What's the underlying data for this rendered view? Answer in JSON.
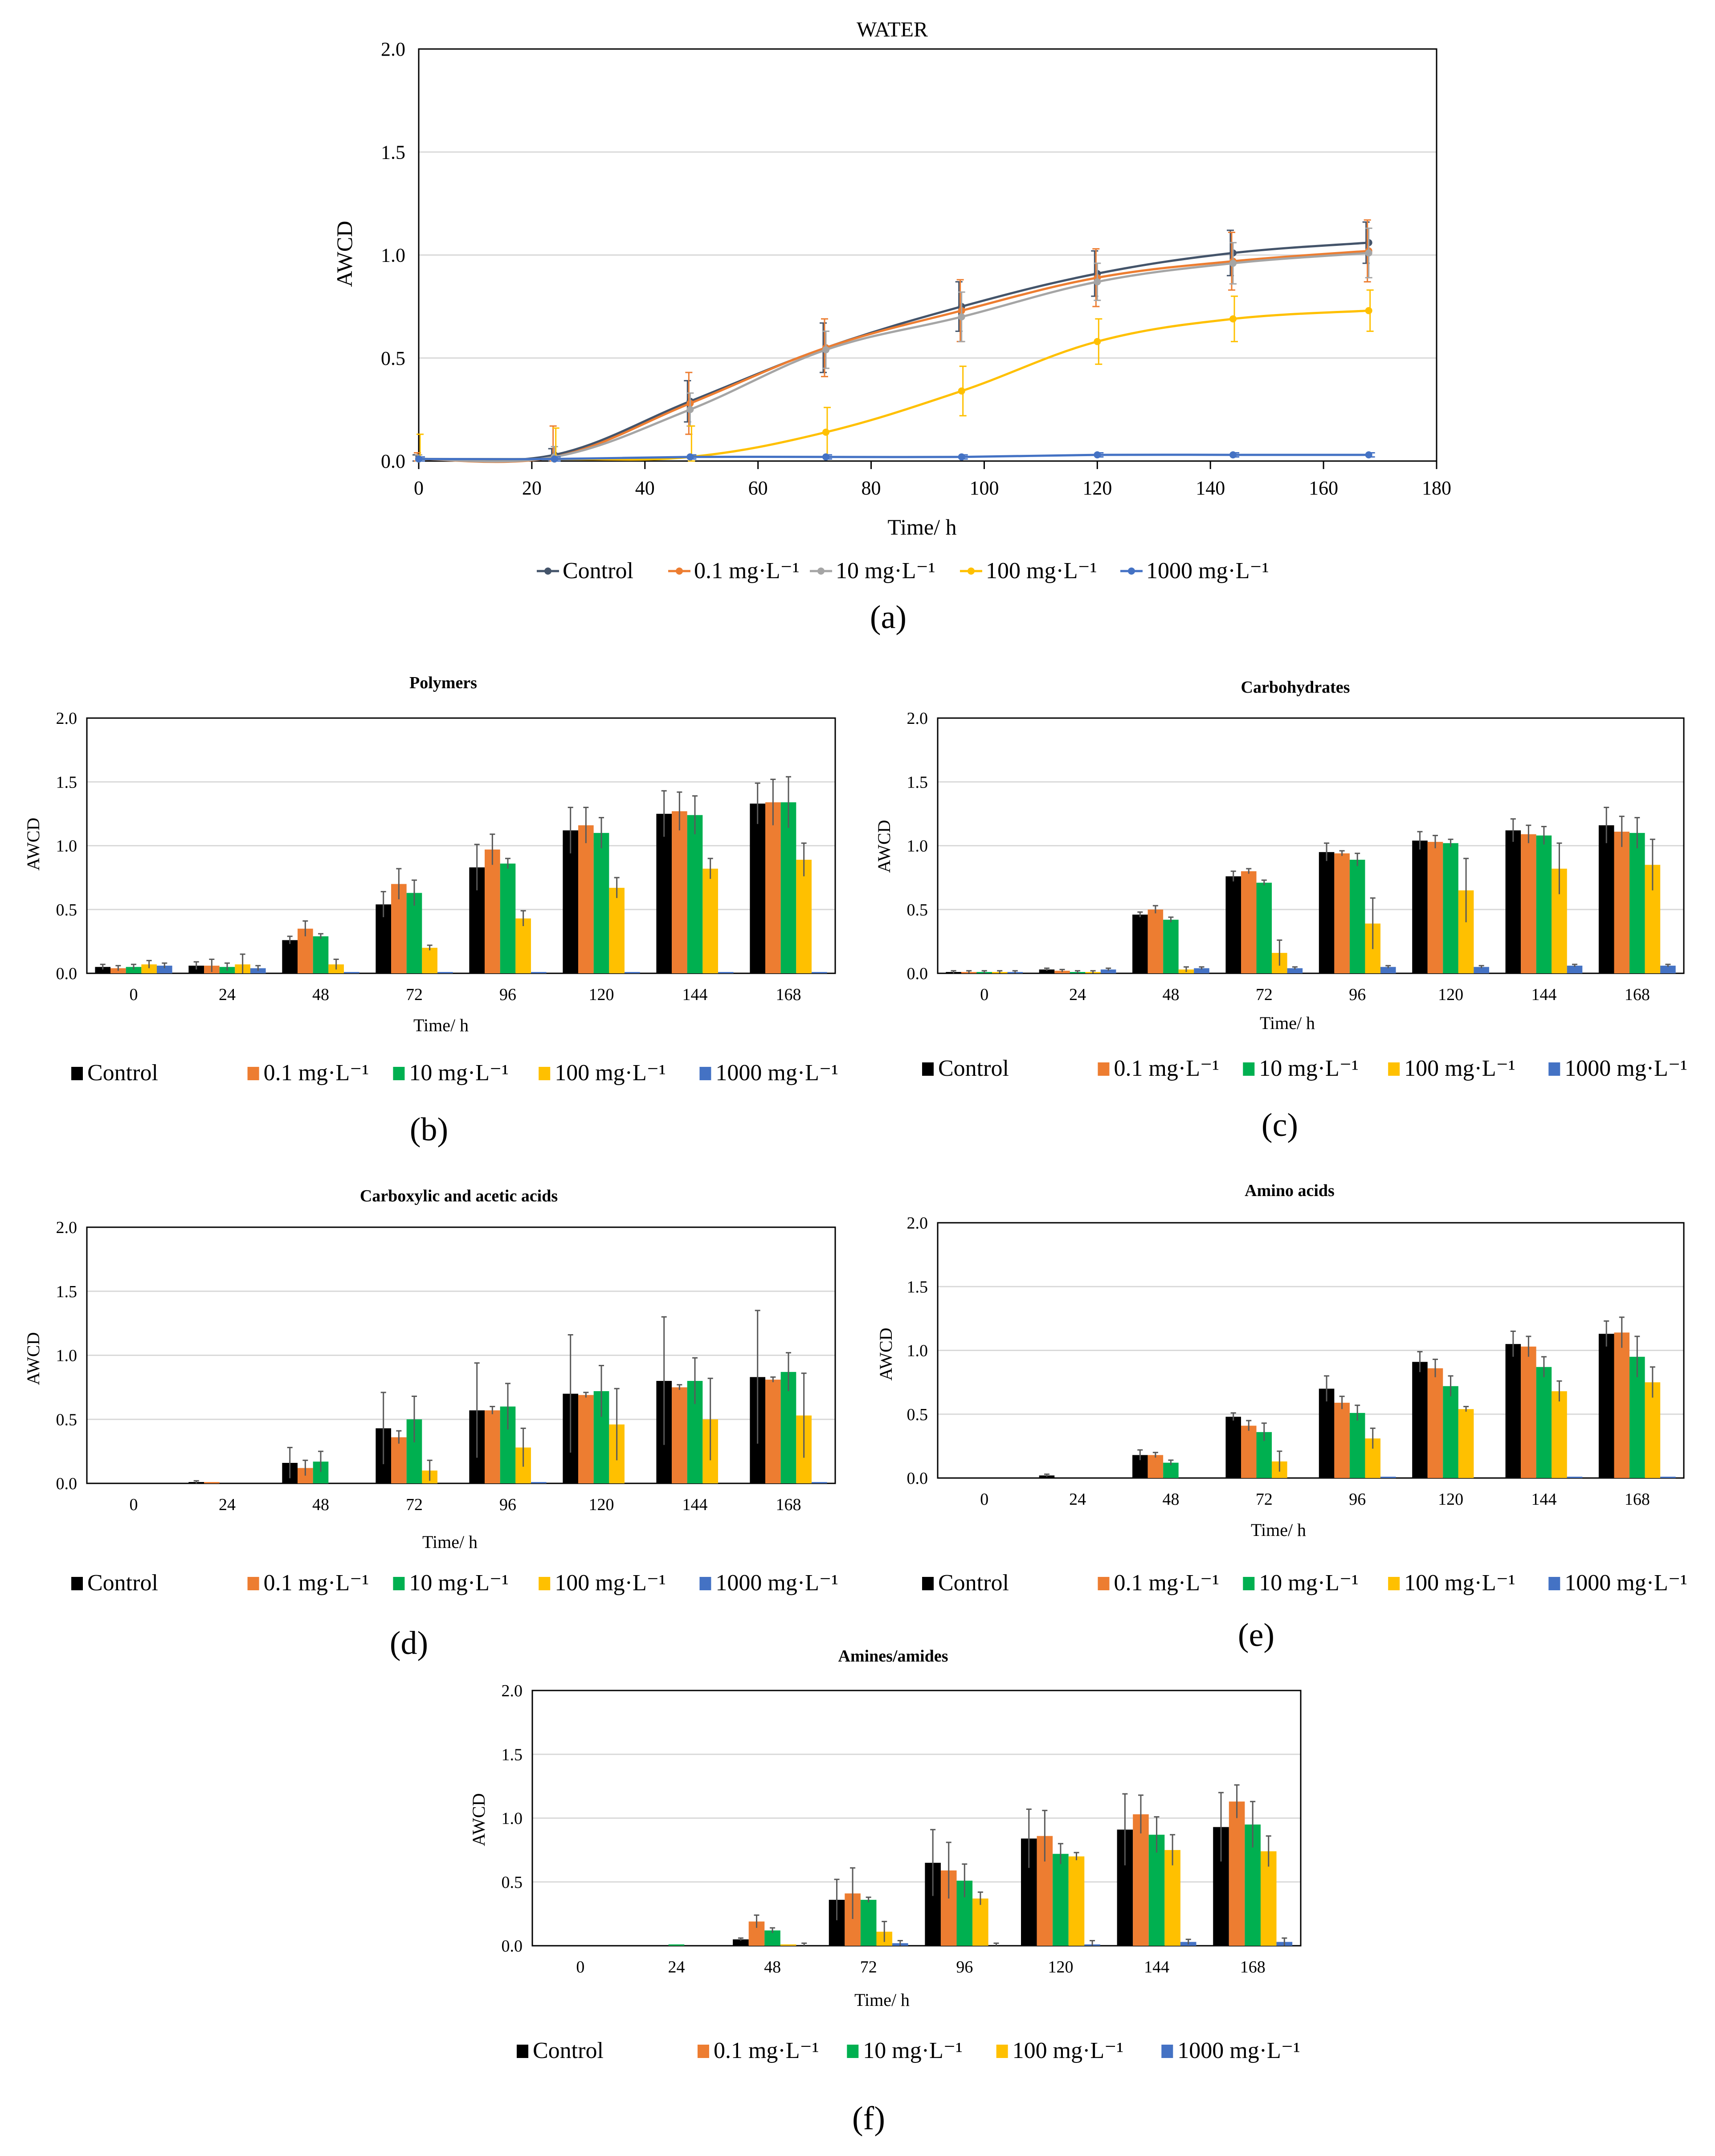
{
  "legend_labels": [
    "Control",
    "0.1 mg·L⁻¹",
    "10 mg·L⁻¹",
    "100 mg·L⁻¹",
    "1000 mg·L⁻¹"
  ],
  "colors": {
    "line": [
      "#44546a",
      "#ed7d31",
      "#a5a5a5",
      "#ffc000",
      "#4472c4"
    ],
    "bar": [
      "#000000",
      "#ed7d31",
      "#00b050",
      "#ffc000",
      "#4472c4"
    ]
  },
  "panel_labels": [
    "(a)",
    "(b)",
    "(c)",
    "(d)",
    "(e)",
    "(f)"
  ],
  "chart_data": [
    {
      "type": "line",
      "title": "WATER",
      "xlabel": "Time/ h",
      "ylabel": "AWCD",
      "xlim": [
        0,
        180
      ],
      "ylim": [
        0,
        2.0
      ],
      "xticks": [
        "0",
        "20",
        "40",
        "60",
        "80",
        "100",
        "120",
        "140",
        "160",
        "180"
      ],
      "yticks": [
        "0.0",
        "0.5",
        "1.0",
        "1.5",
        "2.0"
      ],
      "grid": true,
      "legend_position": "bottom",
      "x": [
        0,
        24,
        48,
        72,
        96,
        120,
        144,
        168
      ],
      "series": [
        {
          "name": "Control",
          "values": [
            0.01,
            0.03,
            0.29,
            0.55,
            0.75,
            0.91,
            1.01,
            1.06
          ],
          "errors": [
            0.02,
            0.03,
            0.1,
            0.12,
            0.12,
            0.11,
            0.11,
            0.1
          ]
        },
        {
          "name": "0.1 mg·L⁻¹",
          "values": [
            0.01,
            0.02,
            0.28,
            0.55,
            0.73,
            0.89,
            0.97,
            1.02
          ],
          "errors": [
            0.03,
            0.15,
            0.15,
            0.14,
            0.15,
            0.14,
            0.14,
            0.15
          ]
        },
        {
          "name": "10 mg·L⁻¹",
          "values": [
            0.01,
            0.02,
            0.25,
            0.54,
            0.7,
            0.87,
            0.96,
            1.01
          ],
          "errors": [
            0.02,
            0.05,
            0.08,
            0.09,
            0.12,
            0.09,
            0.1,
            0.12
          ]
        },
        {
          "name": "100 mg·L⁻¹",
          "values": [
            0.01,
            0.01,
            0.02,
            0.14,
            0.34,
            0.58,
            0.69,
            0.73
          ],
          "errors": [
            0.12,
            0.15,
            0.15,
            0.12,
            0.12,
            0.11,
            0.11,
            0.1
          ]
        },
        {
          "name": "1000 mg·L⁻¹",
          "values": [
            0.01,
            0.01,
            0.02,
            0.02,
            0.02,
            0.03,
            0.03,
            0.03
          ],
          "errors": [
            0.01,
            0.01,
            0.01,
            0.01,
            0.01,
            0.01,
            0.01,
            0.01
          ]
        }
      ]
    },
    {
      "type": "bar",
      "title": "Polymers",
      "xlabel": "Time/ h",
      "ylabel": "AWCD",
      "ylim": [
        0,
        2.0
      ],
      "yticks": [
        "0.0",
        "0.5",
        "1.0",
        "1.5",
        "2.0"
      ],
      "categories": [
        "0",
        "24",
        "48",
        "72",
        "96",
        "120",
        "144",
        "168"
      ],
      "legend_position": "bottom",
      "series": [
        {
          "name": "Control",
          "values": [
            0.05,
            0.06,
            0.26,
            0.54,
            0.83,
            1.12,
            1.25,
            1.33
          ],
          "errors": [
            0.02,
            0.03,
            0.03,
            0.1,
            0.18,
            0.18,
            0.18,
            0.16
          ]
        },
        {
          "name": "0.1 mg·L⁻¹",
          "values": [
            0.04,
            0.06,
            0.35,
            0.7,
            0.97,
            1.16,
            1.27,
            1.34
          ],
          "errors": [
            0.02,
            0.05,
            0.06,
            0.12,
            0.12,
            0.14,
            0.15,
            0.18
          ]
        },
        {
          "name": "10 mg·L⁻¹",
          "values": [
            0.05,
            0.05,
            0.29,
            0.63,
            0.86,
            1.1,
            1.24,
            1.34
          ],
          "errors": [
            0.02,
            0.03,
            0.02,
            0.1,
            0.04,
            0.12,
            0.15,
            0.2
          ]
        },
        {
          "name": "100 mg·L⁻¹",
          "values": [
            0.07,
            0.07,
            0.07,
            0.2,
            0.43,
            0.67,
            0.82,
            0.89
          ],
          "errors": [
            0.03,
            0.08,
            0.04,
            0.02,
            0.06,
            0.08,
            0.08,
            0.13
          ]
        },
        {
          "name": "1000 mg·L⁻¹",
          "values": [
            0.06,
            0.04,
            0.01,
            0.01,
            0.01,
            0.01,
            0.01,
            0.01
          ],
          "errors": [
            0.02,
            0.02,
            0.0,
            0.0,
            0.0,
            0.0,
            0.0,
            0.0
          ]
        }
      ]
    },
    {
      "type": "bar",
      "title": "Carbohydrates",
      "xlabel": "Time/ h",
      "ylabel": "AWCD",
      "ylim": [
        0,
        2.0
      ],
      "yticks": [
        "0.0",
        "0.5",
        "1.0",
        "1.5",
        "2.0"
      ],
      "categories": [
        "0",
        "24",
        "48",
        "72",
        "96",
        "120",
        "144",
        "168"
      ],
      "legend_position": "bottom",
      "series": [
        {
          "name": "Control",
          "values": [
            0.01,
            0.03,
            0.46,
            0.76,
            0.95,
            1.04,
            1.12,
            1.16
          ],
          "errors": [
            0.01,
            0.01,
            0.02,
            0.04,
            0.07,
            0.07,
            0.09,
            0.14
          ]
        },
        {
          "name": "0.1 mg·L⁻¹",
          "values": [
            0.01,
            0.02,
            0.5,
            0.8,
            0.94,
            1.03,
            1.09,
            1.11
          ],
          "errors": [
            0.01,
            0.01,
            0.03,
            0.02,
            0.02,
            0.05,
            0.07,
            0.12
          ]
        },
        {
          "name": "10 mg·L⁻¹",
          "values": [
            0.01,
            0.01,
            0.42,
            0.71,
            0.89,
            1.02,
            1.08,
            1.1
          ],
          "errors": [
            0.01,
            0.01,
            0.02,
            0.02,
            0.05,
            0.03,
            0.07,
            0.12
          ]
        },
        {
          "name": "100 mg·L⁻¹",
          "values": [
            0.01,
            0.01,
            0.03,
            0.16,
            0.39,
            0.65,
            0.82,
            0.85
          ],
          "errors": [
            0.01,
            0.01,
            0.02,
            0.1,
            0.2,
            0.25,
            0.2,
            0.2
          ]
        },
        {
          "name": "1000 mg·L⁻¹",
          "values": [
            0.01,
            0.03,
            0.04,
            0.04,
            0.05,
            0.05,
            0.06,
            0.06
          ],
          "errors": [
            0.01,
            0.01,
            0.01,
            0.01,
            0.01,
            0.01,
            0.01,
            0.01
          ]
        }
      ]
    },
    {
      "type": "bar",
      "title": "Carboxylic and acetic acids",
      "xlabel": "Time/ h",
      "ylabel": "AWCD",
      "ylim": [
        0,
        2.0
      ],
      "yticks": [
        "0.0",
        "0.5",
        "1.0",
        "1.5",
        "2.0"
      ],
      "categories": [
        "0",
        "24",
        "48",
        "72",
        "96",
        "120",
        "144",
        "168"
      ],
      "legend_position": "bottom",
      "series": [
        {
          "name": "Control",
          "values": [
            0.0,
            0.01,
            0.16,
            0.43,
            0.57,
            0.7,
            0.8,
            0.83
          ],
          "errors": [
            0.0,
            0.01,
            0.12,
            0.28,
            0.37,
            0.46,
            0.5,
            0.52
          ]
        },
        {
          "name": "0.1 mg·L⁻¹",
          "values": [
            0.0,
            0.01,
            0.12,
            0.36,
            0.57,
            0.69,
            0.75,
            0.81
          ],
          "errors": [
            0.0,
            0.0,
            0.06,
            0.05,
            0.03,
            0.02,
            0.02,
            0.02
          ]
        },
        {
          "name": "10 mg·L⁻¹",
          "values": [
            0.0,
            0.0,
            0.17,
            0.5,
            0.6,
            0.72,
            0.8,
            0.87
          ],
          "errors": [
            0.0,
            0.0,
            0.08,
            0.18,
            0.18,
            0.2,
            0.18,
            0.15
          ]
        },
        {
          "name": "100 mg·L⁻¹",
          "values": [
            0.0,
            0.0,
            0.0,
            0.1,
            0.28,
            0.46,
            0.5,
            0.53
          ],
          "errors": [
            0.0,
            0.0,
            0.0,
            0.08,
            0.15,
            0.28,
            0.32,
            0.33
          ]
        },
        {
          "name": "1000 mg·L⁻¹",
          "values": [
            0.0,
            0.0,
            0.0,
            0.0,
            0.01,
            0.0,
            0.0,
            0.01
          ],
          "errors": [
            0.0,
            0.0,
            0.0,
            0.0,
            0.0,
            0.0,
            0.0,
            0.0
          ]
        }
      ]
    },
    {
      "type": "bar",
      "title": "Amino acids",
      "xlabel": "Time/ h",
      "ylabel": "AWCD",
      "ylim": [
        0,
        2.0
      ],
      "yticks": [
        "0.0",
        "0.5",
        "1.0",
        "1.5",
        "2.0"
      ],
      "categories": [
        "0",
        "24",
        "48",
        "72",
        "96",
        "120",
        "144",
        "168"
      ],
      "legend_position": "bottom",
      "series": [
        {
          "name": "Control",
          "values": [
            0.0,
            0.02,
            0.18,
            0.48,
            0.7,
            0.91,
            1.05,
            1.13
          ],
          "errors": [
            0.0,
            0.01,
            0.04,
            0.03,
            0.1,
            0.08,
            0.1,
            0.1
          ]
        },
        {
          "name": "0.1 mg·L⁻¹",
          "values": [
            0.0,
            0.0,
            0.18,
            0.41,
            0.59,
            0.86,
            1.03,
            1.14
          ],
          "errors": [
            0.0,
            0.0,
            0.02,
            0.04,
            0.05,
            0.07,
            0.08,
            0.12
          ]
        },
        {
          "name": "10 mg·L⁻¹",
          "values": [
            0.0,
            0.0,
            0.12,
            0.36,
            0.51,
            0.72,
            0.87,
            0.95
          ],
          "errors": [
            0.0,
            0.0,
            0.02,
            0.07,
            0.06,
            0.08,
            0.08,
            0.16
          ]
        },
        {
          "name": "100 mg·L⁻¹",
          "values": [
            0.0,
            0.0,
            0.0,
            0.13,
            0.31,
            0.54,
            0.68,
            0.75
          ],
          "errors": [
            0.0,
            0.0,
            0.0,
            0.08,
            0.08,
            0.02,
            0.08,
            0.12
          ]
        },
        {
          "name": "1000 mg·L⁻¹",
          "values": [
            0.0,
            0.0,
            0.0,
            0.0,
            0.01,
            0.0,
            0.01,
            0.01
          ],
          "errors": [
            0.0,
            0.0,
            0.0,
            0.0,
            0.0,
            0.0,
            0.0,
            0.0
          ]
        }
      ]
    },
    {
      "type": "bar",
      "title": "Amines/amides",
      "xlabel": "Time/ h",
      "ylabel": "AWCD",
      "ylim": [
        0,
        2.0
      ],
      "yticks": [
        "0.0",
        "0.5",
        "1.0",
        "1.5",
        "2.0"
      ],
      "categories": [
        "0",
        "24",
        "48",
        "72",
        "96",
        "120",
        "144",
        "168"
      ],
      "legend_position": "bottom",
      "series": [
        {
          "name": "Control",
          "values": [
            0.0,
            0.0,
            0.05,
            0.36,
            0.65,
            0.84,
            0.91,
            0.93
          ],
          "errors": [
            0.0,
            0.0,
            0.01,
            0.16,
            0.26,
            0.23,
            0.28,
            0.27
          ]
        },
        {
          "name": "0.1 mg·L⁻¹",
          "values": [
            0.0,
            0.0,
            0.19,
            0.41,
            0.59,
            0.86,
            1.03,
            1.13
          ],
          "errors": [
            0.0,
            0.0,
            0.05,
            0.2,
            0.22,
            0.2,
            0.15,
            0.13
          ]
        },
        {
          "name": "10 mg·L⁻¹",
          "values": [
            0.0,
            0.01,
            0.12,
            0.36,
            0.51,
            0.72,
            0.87,
            0.95
          ],
          "errors": [
            0.0,
            0.0,
            0.02,
            0.02,
            0.13,
            0.08,
            0.14,
            0.18
          ]
        },
        {
          "name": "100 mg·L⁻¹",
          "values": [
            0.0,
            0.0,
            0.01,
            0.11,
            0.37,
            0.7,
            0.75,
            0.74
          ],
          "errors": [
            0.0,
            0.0,
            0.0,
            0.08,
            0.05,
            0.03,
            0.12,
            0.12
          ]
        },
        {
          "name": "1000 mg·L⁻¹",
          "values": [
            0.0,
            0.0,
            0.0,
            0.02,
            0.0,
            0.01,
            0.03,
            0.03
          ],
          "errors": [
            0.0,
            0.0,
            0.02,
            0.02,
            0.02,
            0.03,
            0.02,
            0.03
          ]
        }
      ]
    }
  ]
}
